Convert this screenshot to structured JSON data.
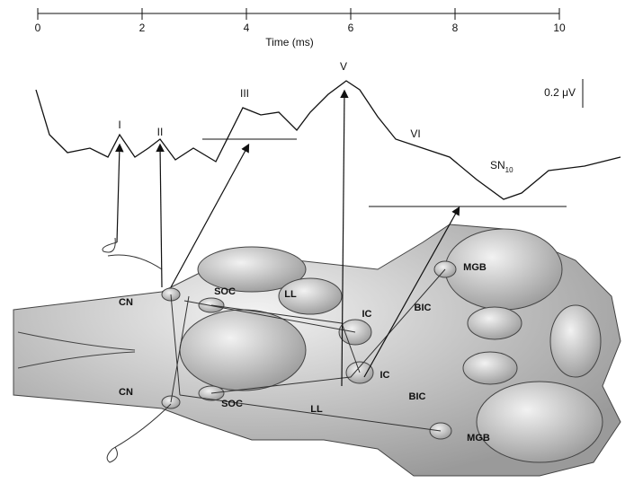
{
  "time_axis": {
    "ticks": [
      0,
      2,
      4,
      6,
      8,
      10
    ],
    "label": "Time (ms)"
  },
  "waves": {
    "I": "I",
    "II": "II",
    "III": "III",
    "V": "V",
    "VI": "VI",
    "SN": {
      "main": "SN",
      "sub": "10"
    }
  },
  "scale_bar": "0.2 μV",
  "structures": {
    "upper": {
      "cn": "CN",
      "soc": "SOC",
      "ll": "LL",
      "ic": "IC",
      "bic": "BIC",
      "mgb": "MGB"
    },
    "lower": {
      "cn": "CN",
      "soc": "SOC",
      "ll": "LL",
      "ic": "IC",
      "bic": "BIC",
      "mgb": "MGB"
    }
  }
}
